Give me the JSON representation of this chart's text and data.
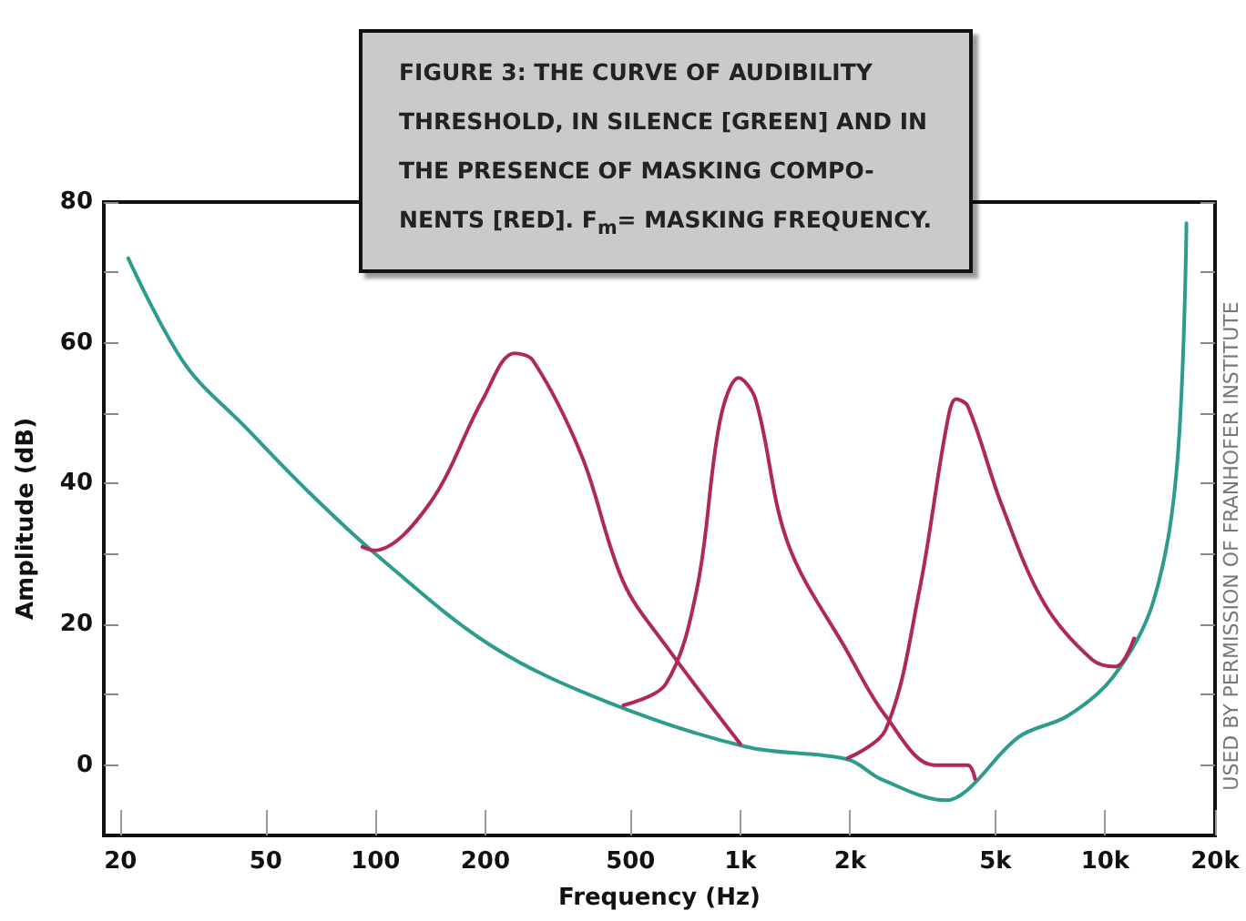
{
  "chart_data": {
    "type": "line",
    "title": "FIGURE 3: THE CURVE OF AUDIBILITY\nTHRESHOLD, IN SILENCE [GREEN] AND IN\nTHE PRESENCE OF MASKING COMPO-\nNENTS [RED]. F$_{m}$= MASKING FREQUENCY.",
    "xlabel": "Frequency (Hz)",
    "ylabel": "Amplitude (dB)",
    "log": "x",
    "grid": false,
    "marker": "none",
    "line_style": "solid",
    "xlim": [
      18,
      20000
    ],
    "xticks": [
      20,
      50,
      100,
      200,
      500,
      {
        "value": 1000,
        "label": "1k"
      },
      {
        "value": 2000,
        "label": "2k"
      },
      {
        "value": 5000,
        "label": "5k"
      },
      {
        "value": 10000,
        "label": "10k"
      },
      {
        "value": 20000,
        "label": "20k"
      }
    ],
    "ylim": [
      -10,
      80
    ],
    "yticks": [
      0,
      {
        "value": 10,
        "label": null
      },
      20,
      {
        "value": 30,
        "label": null
      },
      40,
      {
        "value": 50,
        "label": null
      },
      60,
      {
        "value": 70,
        "label": null
      },
      80
    ],
    "annotations": [
      "USED BY PERMISSION OF FRANHOFER INSTITUTE"
    ],
    "series": [
      {
        "color": "#2e9c8c",
        "x": [
          21,
          30,
          44,
          65,
          100,
          207,
          430,
          1035,
          1970,
          2430,
          3670,
          4200,
          5800,
          7900,
          10500,
          13500,
          15700,
          16700
        ],
        "values": [
          72,
          57,
          48,
          39,
          30,
          17,
          9,
          2.6,
          0.8,
          -2,
          -5,
          -3.5,
          4,
          7,
          12.5,
          23,
          42,
          77
        ]
      },
      {
        "color": "#b0285a",
        "x": [
          92,
          99,
          140,
          197,
          240,
          270,
          367,
          478,
          624,
          1000
        ],
        "values": [
          31,
          30.5,
          37,
          52,
          58.5,
          57.5,
          44,
          26,
          17,
          3
        ]
      },
      {
        "color": "#b0285a",
        "x": [
          478,
          624,
          760,
          880,
          990,
          1100,
          1350,
          1970,
          2500,
          3400,
          4200,
          4400
        ],
        "values": [
          8.5,
          11.5,
          25,
          49,
          55,
          52,
          31.5,
          16,
          7,
          0,
          0,
          -2
        ]
      },
      {
        "color": "#b0285a",
        "x": [
          1970,
          2500,
          3100,
          3670,
          3900,
          4200,
          5200,
          6800,
          9200,
          10700,
          12000
        ],
        "values": [
          1,
          5,
          25,
          48,
          52,
          51,
          37,
          23,
          15,
          14,
          18
        ]
      }
    ]
  }
}
